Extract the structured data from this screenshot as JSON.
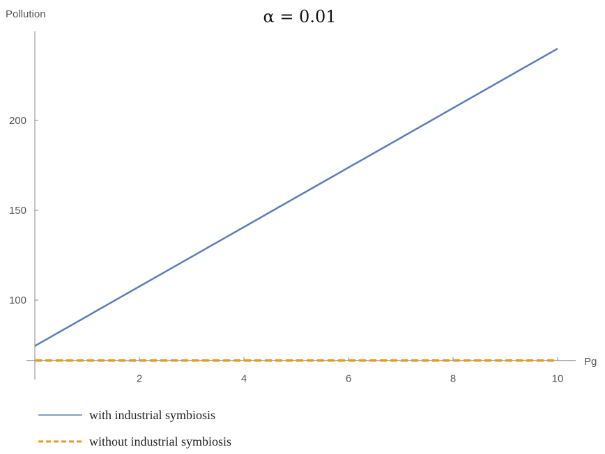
{
  "chart_data": {
    "type": "line",
    "title": "α = 0.01",
    "xlabel": "Pg",
    "ylabel": "Pollution",
    "xlim": [
      0,
      10
    ],
    "ylim": [
      66.4,
      245
    ],
    "x_axis_crosses_at_y": 66.4,
    "x_ticks": [
      2,
      4,
      6,
      8,
      10
    ],
    "y_ticks": [
      100,
      150,
      200
    ],
    "grid": false,
    "legend_placement": "bottom-left",
    "series": [
      {
        "name": "with industrial symbiosis",
        "style": "solid",
        "color": "#5A7DB8",
        "x": [
          0,
          10
        ],
        "y": [
          74.5,
          240
        ]
      },
      {
        "name": "without industrial symbiosis",
        "style": "dashed",
        "color": "#E69A1F",
        "x": [
          0,
          10
        ],
        "y": [
          66.4,
          66.4
        ]
      }
    ]
  }
}
